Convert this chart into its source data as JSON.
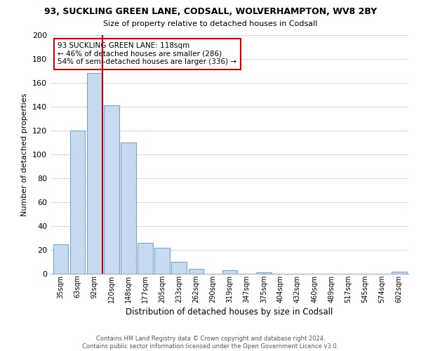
{
  "title": "93, SUCKLING GREEN LANE, CODSALL, WOLVERHAMPTON, WV8 2BY",
  "subtitle": "Size of property relative to detached houses in Codsall",
  "xlabel": "Distribution of detached houses by size in Codsall",
  "ylabel": "Number of detached properties",
  "bar_labels": [
    "35sqm",
    "63sqm",
    "92sqm",
    "120sqm",
    "148sqm",
    "177sqm",
    "205sqm",
    "233sqm",
    "262sqm",
    "290sqm",
    "319sqm",
    "347sqm",
    "375sqm",
    "404sqm",
    "432sqm",
    "460sqm",
    "489sqm",
    "517sqm",
    "545sqm",
    "574sqm",
    "602sqm"
  ],
  "bar_values": [
    25,
    120,
    168,
    141,
    110,
    26,
    22,
    10,
    4,
    0,
    3,
    0,
    1,
    0,
    0,
    0,
    0,
    0,
    0,
    0,
    2
  ],
  "bar_color": "#c8daf0",
  "bar_edge_color": "#6fa8d0",
  "vline_color": "#cc0000",
  "vline_x_index": 2,
  "ylim": [
    0,
    200
  ],
  "yticks": [
    0,
    20,
    40,
    60,
    80,
    100,
    120,
    140,
    160,
    180,
    200
  ],
  "annotation_title": "93 SUCKLING GREEN LANE: 118sqm",
  "annotation_line1": "← 46% of detached houses are smaller (286)",
  "annotation_line2": "54% of semi-detached houses are larger (336) →",
  "footer_line1": "Contains HM Land Registry data © Crown copyright and database right 2024.",
  "footer_line2": "Contains public sector information licensed under the Open Government Licence v3.0.",
  "background_color": "#ffffff",
  "grid_color": "#d0d8e8"
}
